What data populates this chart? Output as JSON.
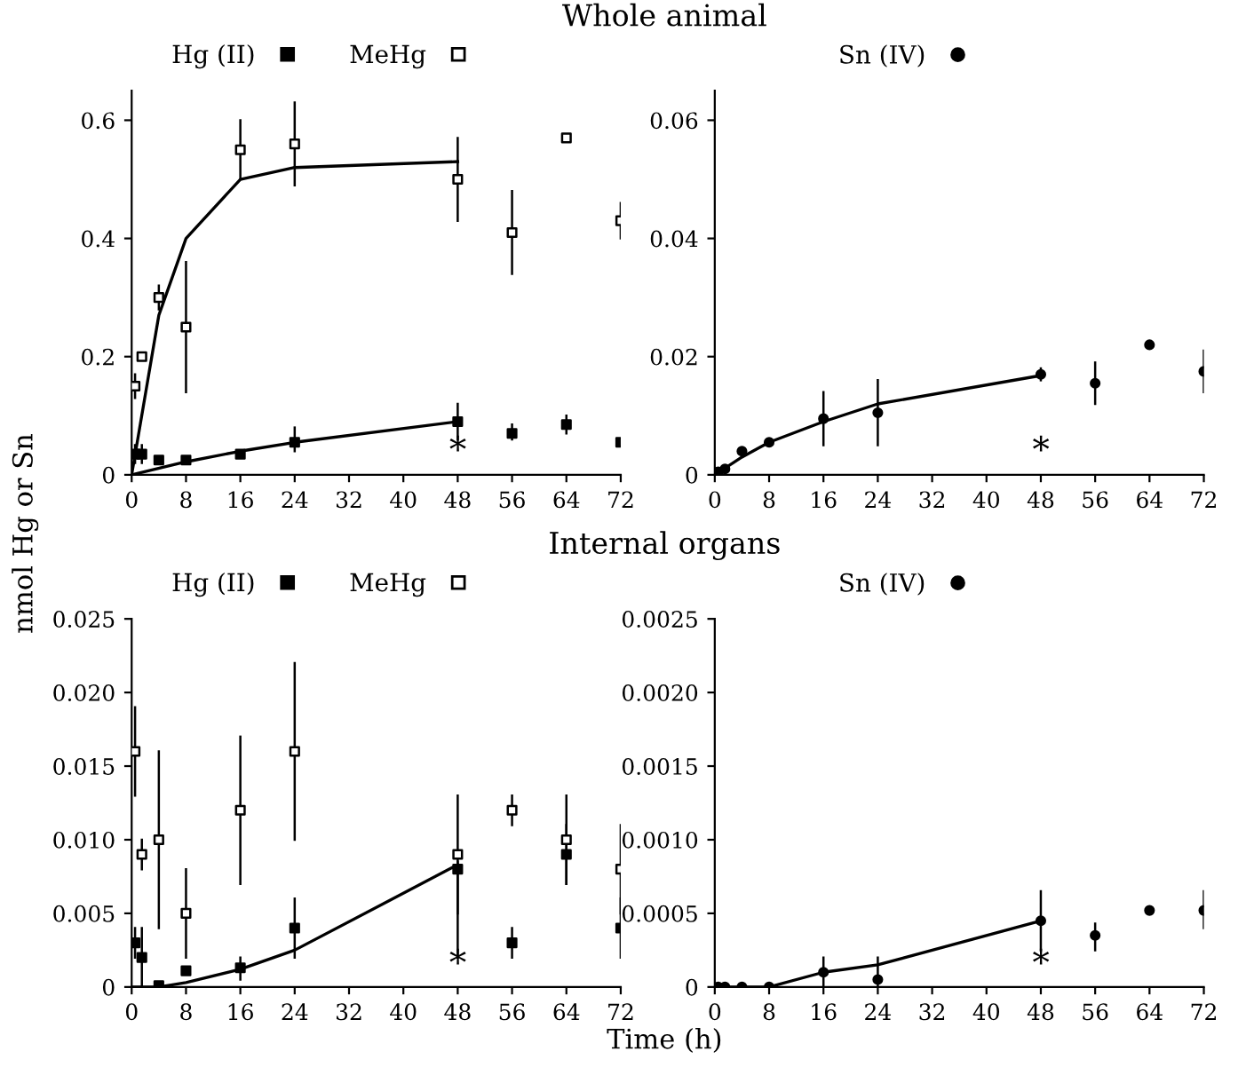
{
  "chart_data": [
    {
      "type": "scatter",
      "title": "Whole animal",
      "ylabel": "nmol Hg or Sn",
      "x": [
        0.5,
        1.5,
        4,
        8,
        16,
        24,
        48,
        56,
        64,
        72
      ],
      "xlim": [
        0,
        72
      ],
      "xticks": [
        0,
        8,
        16,
        24,
        32,
        40,
        48,
        56,
        64,
        72
      ],
      "ylim": [
        0,
        0.65
      ],
      "yticks": [
        0,
        0.2,
        0.4,
        0.6
      ],
      "legend": "top",
      "annotations": [
        "*"
      ],
      "series": [
        {
          "name": "Hg (II)",
          "color": "#000000",
          "marker": "square",
          "values": [
            0.035,
            0.035,
            0.025,
            0.025,
            0.035,
            0.055,
            0.09,
            0.07,
            0.085,
            0.055
          ],
          "errors": [
            [
              0.02,
              0.05
            ],
            [
              0.02,
              0.05
            ],
            null,
            null,
            null,
            [
              0.04,
              0.08
            ],
            [
              0.06,
              0.12
            ],
            [
              0.06,
              0.085
            ],
            [
              0.07,
              0.1
            ],
            null
          ]
        },
        {
          "name": "MeHg",
          "color": "#ffffff",
          "marker": "square",
          "values": [
            0.15,
            0.2,
            0.3,
            0.25,
            0.55,
            0.56,
            0.5,
            0.41,
            0.57,
            0.43
          ],
          "errors": [
            [
              0.13,
              0.17
            ],
            null,
            [
              0.28,
              0.32
            ],
            [
              0.14,
              0.36
            ],
            [
              0.5,
              0.6
            ],
            [
              0.49,
              0.63
            ],
            [
              0.43,
              0.57
            ],
            [
              0.34,
              0.48
            ],
            null,
            [
              0.4,
              0.46
            ]
          ]
        },
        {
          "type": "line",
          "color": "#000000",
          "marker": "none",
          "x": [
            0,
            4,
            8,
            16,
            24,
            48
          ],
          "values": [
            0,
            0.27,
            0.4,
            0.5,
            0.52,
            0.53
          ]
        },
        {
          "type": "line",
          "color": "#000000",
          "marker": "none",
          "x": [
            0,
            8,
            16,
            24,
            48
          ],
          "values": [
            0,
            0.022,
            0.04,
            0.055,
            0.09
          ]
        }
      ]
    },
    {
      "type": "scatter",
      "x": [
        0.5,
        1.5,
        4,
        8,
        16,
        24,
        48,
        56,
        64,
        72
      ],
      "xlim": [
        0,
        72
      ],
      "xticks": [
        0,
        8,
        16,
        24,
        32,
        40,
        48,
        56,
        64,
        72
      ],
      "ylim": [
        0,
        0.065
      ],
      "yticks": [
        0,
        0.02,
        0.04,
        0.06
      ],
      "legend": "top",
      "annotations": [
        "*"
      ],
      "series": [
        {
          "name": "Sn (IV)",
          "color": "#000000",
          "marker": "circle",
          "values": [
            0.0005,
            0.001,
            0.004,
            0.0055,
            0.0095,
            0.0105,
            0.017,
            0.0155,
            0.022,
            0.0175
          ],
          "errors": [
            null,
            null,
            null,
            null,
            [
              0.005,
              0.014
            ],
            [
              0.005,
              0.016
            ],
            [
              0.016,
              0.018
            ],
            [
              0.012,
              0.019
            ],
            null,
            [
              0.014,
              0.021
            ]
          ]
        },
        {
          "type": "line",
          "color": "#000000",
          "marker": "none",
          "x": [
            0,
            4,
            8,
            16,
            24,
            48
          ],
          "values": [
            0,
            0.003,
            0.0055,
            0.009,
            0.012,
            0.0168
          ]
        }
      ]
    },
    {
      "type": "scatter",
      "title": "Internal organs",
      "xlabel": "Time (h)",
      "x": [
        0.5,
        1.5,
        4,
        8,
        16,
        24,
        48,
        56,
        64,
        72
      ],
      "xlim": [
        0,
        72
      ],
      "xticks": [
        0,
        8,
        16,
        24,
        32,
        40,
        48,
        56,
        64,
        72
      ],
      "ylim": [
        0,
        0.025
      ],
      "yticks": [
        0,
        0.005,
        {
          "value": 0.01,
          "label": "0.010"
        },
        0.015,
        {
          "value": 0.02,
          "label": "0.020"
        },
        0.025
      ],
      "legend": "top",
      "annotations": [
        "*"
      ],
      "series": [
        {
          "name": "Hg (II)",
          "color": "#000000",
          "marker": "square",
          "values": [
            0.003,
            0.002,
            0.0001,
            0.0011,
            0.0013,
            0.004,
            0.008,
            0.003,
            0.009,
            0.004
          ],
          "errors": [
            [
              0.002,
              0.004
            ],
            [
              0,
              0.004
            ],
            null,
            null,
            [
              0.0005,
              0.002
            ],
            [
              0.002,
              0.006
            ],
            [
              0.002,
              0.0085
            ],
            [
              0.002,
              0.004
            ],
            [
              0.007,
              0.011
            ],
            [
              0.002,
              0.006
            ]
          ]
        },
        {
          "name": "MeHg",
          "color": "#ffffff",
          "marker": "square",
          "values": [
            0.016,
            0.009,
            0.01,
            0.005,
            0.012,
            0.016,
            0.009,
            0.012,
            0.01,
            0.008
          ],
          "errors": [
            [
              0.013,
              0.019
            ],
            [
              0.008,
              0.01
            ],
            [
              0.004,
              0.016
            ],
            [
              0.002,
              0.008
            ],
            [
              0.007,
              0.017
            ],
            [
              0.01,
              0.022
            ],
            [
              0.005,
              0.013
            ],
            [
              0.011,
              0.013
            ],
            [
              0.007,
              0.013
            ],
            [
              0.005,
              0.011
            ]
          ]
        },
        {
          "type": "line",
          "color": "#000000",
          "marker": "none",
          "x": [
            0,
            4,
            8,
            16,
            24,
            48
          ],
          "values": [
            0,
            0,
            0.0003,
            0.0012,
            0.0025,
            0.0083
          ]
        }
      ]
    },
    {
      "type": "scatter",
      "x": [
        0.5,
        1.5,
        4,
        8,
        16,
        24,
        48,
        56,
        64,
        72
      ],
      "xlim": [
        0,
        72
      ],
      "xticks": [
        0,
        8,
        16,
        24,
        32,
        40,
        48,
        56,
        64,
        72
      ],
      "ylim": [
        0,
        0.0025
      ],
      "yticks": [
        0,
        0.0005,
        {
          "value": 0.001,
          "label": "0.0010"
        },
        0.0015,
        {
          "value": 0.002,
          "label": "0.0020"
        },
        0.0025
      ],
      "legend": "top",
      "annotations": [
        "*"
      ],
      "series": [
        {
          "name": "Sn (IV)",
          "color": "#000000",
          "marker": "circle",
          "values": [
            0,
            0,
            0,
            0,
            0.0001,
            5e-05,
            0.00045,
            0.00035,
            0.00052,
            0.00052
          ],
          "errors": [
            null,
            null,
            null,
            null,
            [
              0,
              0.0002
            ],
            [
              0,
              0.0002
            ],
            [
              0.00025,
              0.00065
            ],
            [
              0.00025,
              0.00043
            ],
            null,
            [
              0.0004,
              0.00065
            ]
          ]
        },
        {
          "type": "line",
          "color": "#000000",
          "marker": "none",
          "x": [
            0,
            8,
            16,
            24,
            48
          ],
          "values": [
            0,
            0,
            0.0001,
            0.00015,
            0.00045
          ]
        }
      ]
    }
  ]
}
